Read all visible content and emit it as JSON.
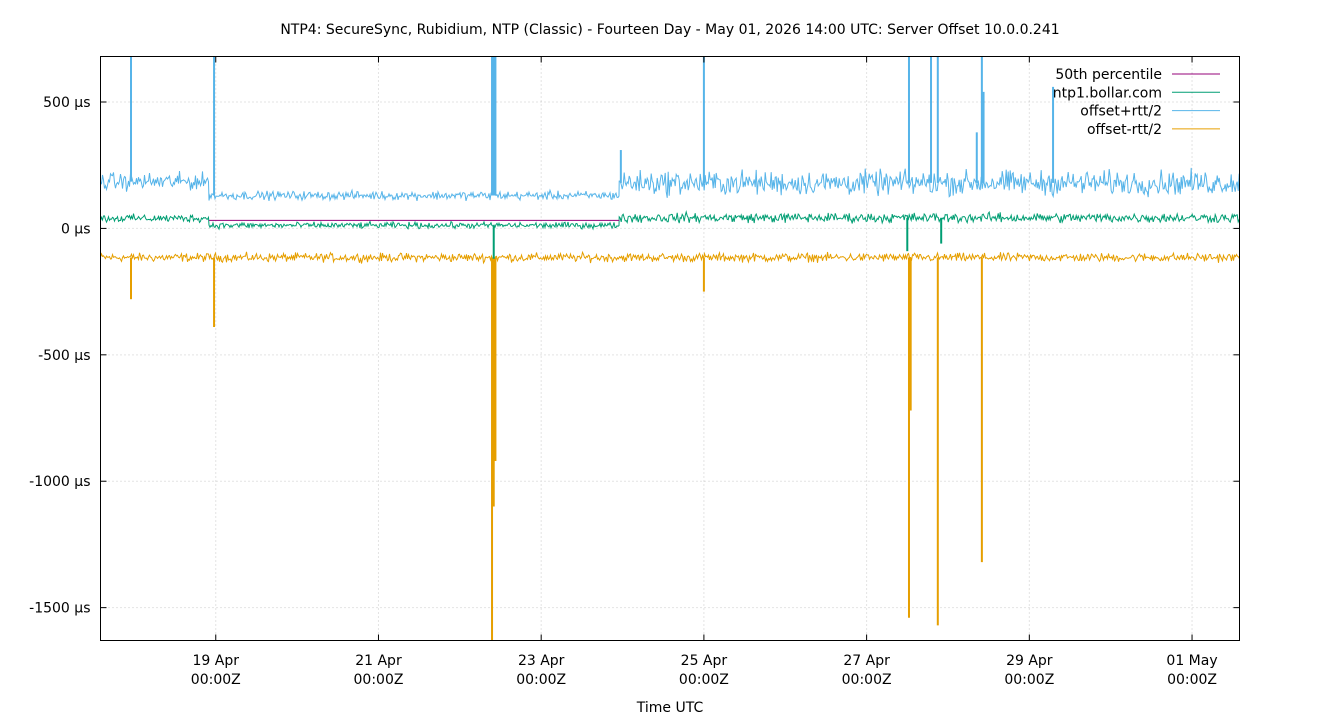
{
  "chart_data": {
    "type": "line",
    "title": "NTP4: SecureSync, Rubidium, NTP (Classic) - Fourteen Day - May 01, 2026 14:00 UTC: Server Offset 10.0.0.241",
    "xlabel": "Time UTC",
    "ylabel": "",
    "xlim": [
      "2026-04-17T14:00Z",
      "2026-05-01T14:00Z"
    ],
    "ylim": [
      -1630,
      680
    ],
    "grid": true,
    "legend_position": "top-right",
    "y_ticks": [
      {
        "value": 500,
        "label": "500 µs"
      },
      {
        "value": 0,
        "label": "0 µs"
      },
      {
        "value": -500,
        "label": "-500 µs"
      },
      {
        "value": -1000,
        "label": "-1000 µs"
      },
      {
        "value": -1500,
        "label": "-1500 µs"
      }
    ],
    "x_ticks": [
      {
        "value": "2026-04-19T00:00Z",
        "line1": "19 Apr",
        "line2": "00:00Z"
      },
      {
        "value": "2026-04-21T00:00Z",
        "line1": "21 Apr",
        "line2": "00:00Z"
      },
      {
        "value": "2026-04-23T00:00Z",
        "line1": "23 Apr",
        "line2": "00:00Z"
      },
      {
        "value": "2026-04-25T00:00Z",
        "line1": "25 Apr",
        "line2": "00:00Z"
      },
      {
        "value": "2026-04-27T00:00Z",
        "line1": "27 Apr",
        "line2": "00:00Z"
      },
      {
        "value": "2026-04-29T00:00Z",
        "line1": "29 Apr",
        "line2": "00:00Z"
      },
      {
        "value": "2026-05-01T00:00Z",
        "line1": "01 May",
        "line2": "00:00Z"
      }
    ],
    "series": [
      {
        "name": "50th percentile",
        "color": "#94007a",
        "points": [
          {
            "x": "2026-04-18T22:00Z",
            "y": 32
          },
          {
            "x": "2026-04-23T23:00Z",
            "y": 32
          }
        ]
      },
      {
        "name": "ntp1.bollar.com",
        "color": "#009e73",
        "segments": [
          {
            "start": "2026-04-17T14:00Z",
            "end": "2026-04-18T22:00Z",
            "level": 40,
            "jitter": 22
          },
          {
            "start": "2026-04-18T22:00Z",
            "end": "2026-04-23T23:00Z",
            "level": 12,
            "jitter": 18
          },
          {
            "start": "2026-04-23T23:00Z",
            "end": "2026-05-01T14:00Z",
            "level": 42,
            "jitter": 28
          }
        ],
        "spikes": [
          {
            "x": "2026-04-22T10:00Z",
            "y": -120
          },
          {
            "x": "2026-04-27T12:00Z",
            "y": -90
          },
          {
            "x": "2026-04-27T22:00Z",
            "y": -60
          }
        ]
      },
      {
        "name": "offset+rtt/2",
        "color": "#56b4e9",
        "segments": [
          {
            "start": "2026-04-17T14:00Z",
            "end": "2026-04-18T22:00Z",
            "level": 185,
            "jitter": 50
          },
          {
            "start": "2026-04-18T22:00Z",
            "end": "2026-04-23T23:00Z",
            "level": 130,
            "jitter": 25
          },
          {
            "start": "2026-04-23T23:00Z",
            "end": "2026-05-01T14:00Z",
            "level": 180,
            "jitter": 70
          }
        ],
        "spikes": [
          {
            "x": "2026-04-17T23:00Z",
            "y": 680
          },
          {
            "x": "2026-04-18T23:30Z",
            "y": 680
          },
          {
            "x": "2026-04-22T09:30Z",
            "y": 680
          },
          {
            "x": "2026-04-22T10:00Z",
            "y": 680
          },
          {
            "x": "2026-04-22T10:30Z",
            "y": 680
          },
          {
            "x": "2026-04-23T23:30Z",
            "y": 310
          },
          {
            "x": "2026-04-25T00:00Z",
            "y": 680
          },
          {
            "x": "2026-04-27T12:30Z",
            "y": 680
          },
          {
            "x": "2026-04-27T19:00Z",
            "y": 680
          },
          {
            "x": "2026-04-27T21:00Z",
            "y": 680
          },
          {
            "x": "2026-04-28T08:30Z",
            "y": 380
          },
          {
            "x": "2026-04-28T10:00Z",
            "y": 680
          },
          {
            "x": "2026-04-28T10:30Z",
            "y": 540
          },
          {
            "x": "2026-04-29T07:00Z",
            "y": 560
          }
        ]
      },
      {
        "name": "offset-rtt/2",
        "color": "#e69f00",
        "segments": [
          {
            "start": "2026-04-17T14:00Z",
            "end": "2026-05-01T14:00Z",
            "level": -115,
            "jitter": 25
          }
        ],
        "spikes": [
          {
            "x": "2026-04-17T23:00Z",
            "y": -280
          },
          {
            "x": "2026-04-18T23:30Z",
            "y": -390
          },
          {
            "x": "2026-04-22T09:30Z",
            "y": -1630
          },
          {
            "x": "2026-04-22T10:00Z",
            "y": -1100
          },
          {
            "x": "2026-04-22T10:30Z",
            "y": -920
          },
          {
            "x": "2026-04-25T00:00Z",
            "y": -250
          },
          {
            "x": "2026-04-27T12:30Z",
            "y": -1540
          },
          {
            "x": "2026-04-27T13:00Z",
            "y": -720
          },
          {
            "x": "2026-04-27T21:00Z",
            "y": -1570
          },
          {
            "x": "2026-04-28T10:00Z",
            "y": -1320
          }
        ]
      }
    ]
  }
}
